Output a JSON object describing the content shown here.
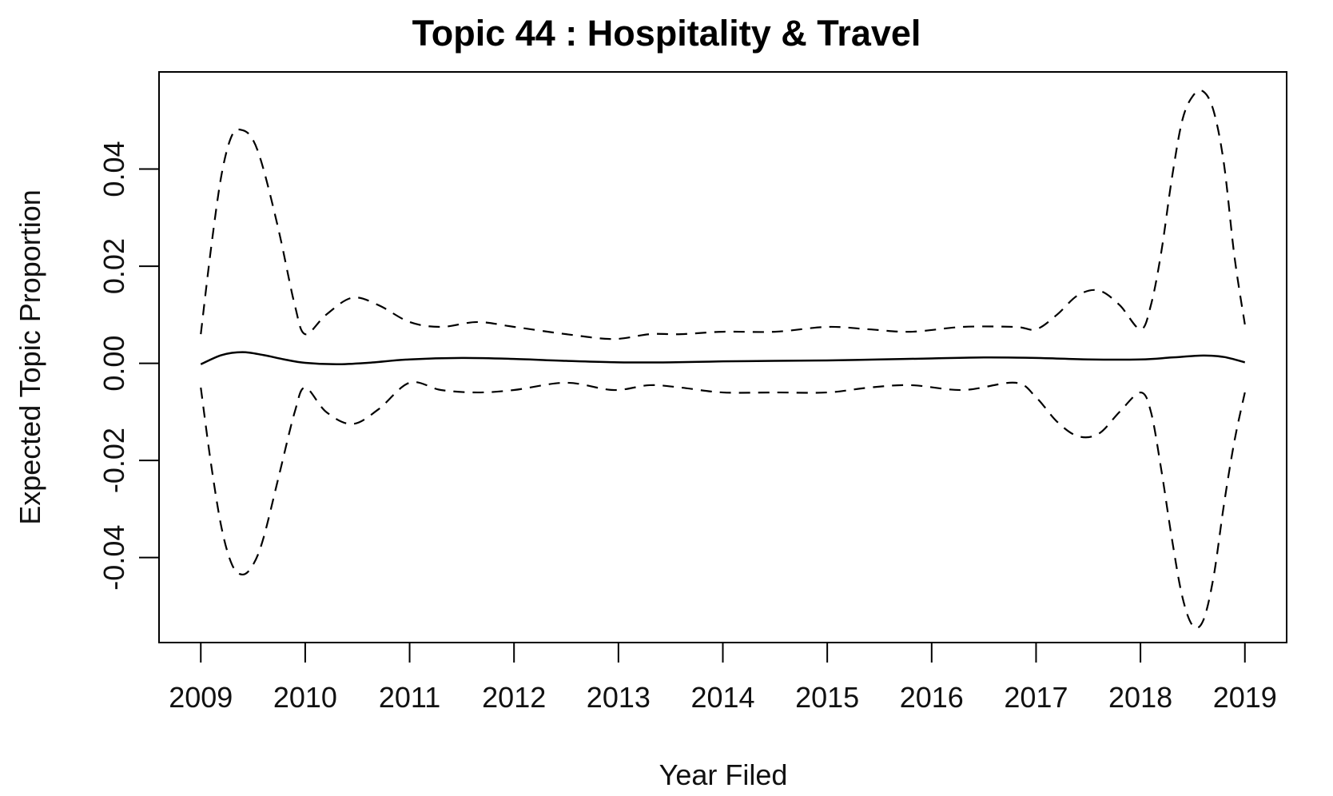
{
  "chart_data": {
    "type": "line",
    "title": "Topic 44 : Hospitality & Travel",
    "xlabel": "Year Filed",
    "ylabel": "Expected Topic Proportion",
    "xlim": [
      2008.6,
      2019.4
    ],
    "ylim": [
      -0.0575,
      0.06
    ],
    "x_ticks": [
      2009,
      2010,
      2011,
      2012,
      2013,
      2014,
      2015,
      2016,
      2017,
      2018,
      2019
    ],
    "x_tick_labels": [
      "2009",
      "2010",
      "2011",
      "2012",
      "2013",
      "2014",
      "2015",
      "2016",
      "2017",
      "2018",
      "2019"
    ],
    "y_ticks": [
      -0.04,
      -0.02,
      0.0,
      0.02,
      0.04
    ],
    "y_tick_labels": [
      "-0.04",
      "-0.02",
      "0.00",
      "0.02",
      "0.04"
    ],
    "grid": false,
    "series": [
      {
        "style": "solid",
        "x": [
          2009.0,
          2009.2,
          2009.4,
          2009.6,
          2009.8,
          2010.0,
          2010.3,
          2010.6,
          2011.0,
          2011.5,
          2012.0,
          2012.5,
          2013.0,
          2013.5,
          2014.0,
          2014.5,
          2015.0,
          2015.5,
          2016.0,
          2016.5,
          2017.0,
          2017.5,
          2018.0,
          2018.3,
          2018.6,
          2018.8,
          2019.0
        ],
        "y": [
          -0.0002,
          0.0017,
          0.0023,
          0.0017,
          0.0008,
          0.0001,
          -0.0002,
          0.0001,
          0.0008,
          0.0011,
          0.0009,
          0.0005,
          0.0002,
          0.0002,
          0.0004,
          0.0005,
          0.0006,
          0.0008,
          0.001,
          0.0012,
          0.0011,
          0.0008,
          0.0008,
          0.0012,
          0.0016,
          0.0013,
          0.0002
        ]
      },
      {
        "style": "dashed",
        "x": [
          2009.0,
          2009.1,
          2009.2,
          2009.3,
          2009.4,
          2009.5,
          2009.6,
          2009.75,
          2009.9,
          2010.0,
          2010.2,
          2010.45,
          2010.7,
          2011.0,
          2011.3,
          2011.65,
          2012.0,
          2012.5,
          2012.95,
          2013.3,
          2013.6,
          2014.0,
          2014.5,
          2015.0,
          2015.4,
          2015.8,
          2016.3,
          2016.8,
          2017.0,
          2017.2,
          2017.4,
          2017.6,
          2017.8,
          2018.0,
          2018.1,
          2018.2,
          2018.3,
          2018.4,
          2018.5,
          2018.6,
          2018.7,
          2018.8,
          2018.9,
          2019.0
        ],
        "y": [
          0.006,
          0.024,
          0.039,
          0.047,
          0.048,
          0.046,
          0.04,
          0.027,
          0.012,
          0.006,
          0.01,
          0.0135,
          0.012,
          0.0085,
          0.0075,
          0.0085,
          0.0075,
          0.006,
          0.005,
          0.006,
          0.006,
          0.0065,
          0.0065,
          0.0075,
          0.007,
          0.0065,
          0.0075,
          0.0075,
          0.007,
          0.01,
          0.014,
          0.015,
          0.012,
          0.007,
          0.012,
          0.023,
          0.038,
          0.05,
          0.055,
          0.056,
          0.052,
          0.041,
          0.022,
          0.008
        ]
      },
      {
        "style": "dashed",
        "x": [
          2009.0,
          2009.1,
          2009.2,
          2009.3,
          2009.4,
          2009.5,
          2009.6,
          2009.75,
          2009.9,
          2010.0,
          2010.2,
          2010.45,
          2010.7,
          2011.0,
          2011.3,
          2011.65,
          2012.0,
          2012.5,
          2012.95,
          2013.3,
          2013.6,
          2014.0,
          2014.5,
          2015.0,
          2015.4,
          2015.8,
          2016.3,
          2016.8,
          2017.0,
          2017.2,
          2017.4,
          2017.6,
          2017.8,
          2018.0,
          2018.1,
          2018.2,
          2018.3,
          2018.4,
          2018.5,
          2018.6,
          2018.7,
          2018.8,
          2018.9,
          2019.0
        ],
        "y": [
          -0.005,
          -0.021,
          -0.034,
          -0.0415,
          -0.0435,
          -0.0415,
          -0.036,
          -0.023,
          -0.01,
          -0.005,
          -0.01,
          -0.0125,
          -0.0095,
          -0.004,
          -0.0055,
          -0.006,
          -0.0055,
          -0.004,
          -0.0055,
          -0.0045,
          -0.005,
          -0.006,
          -0.006,
          -0.006,
          -0.005,
          -0.0045,
          -0.0055,
          -0.004,
          -0.007,
          -0.012,
          -0.015,
          -0.0145,
          -0.01,
          -0.006,
          -0.01,
          -0.022,
          -0.036,
          -0.048,
          -0.054,
          -0.053,
          -0.044,
          -0.029,
          -0.016,
          -0.006
        ]
      }
    ]
  }
}
